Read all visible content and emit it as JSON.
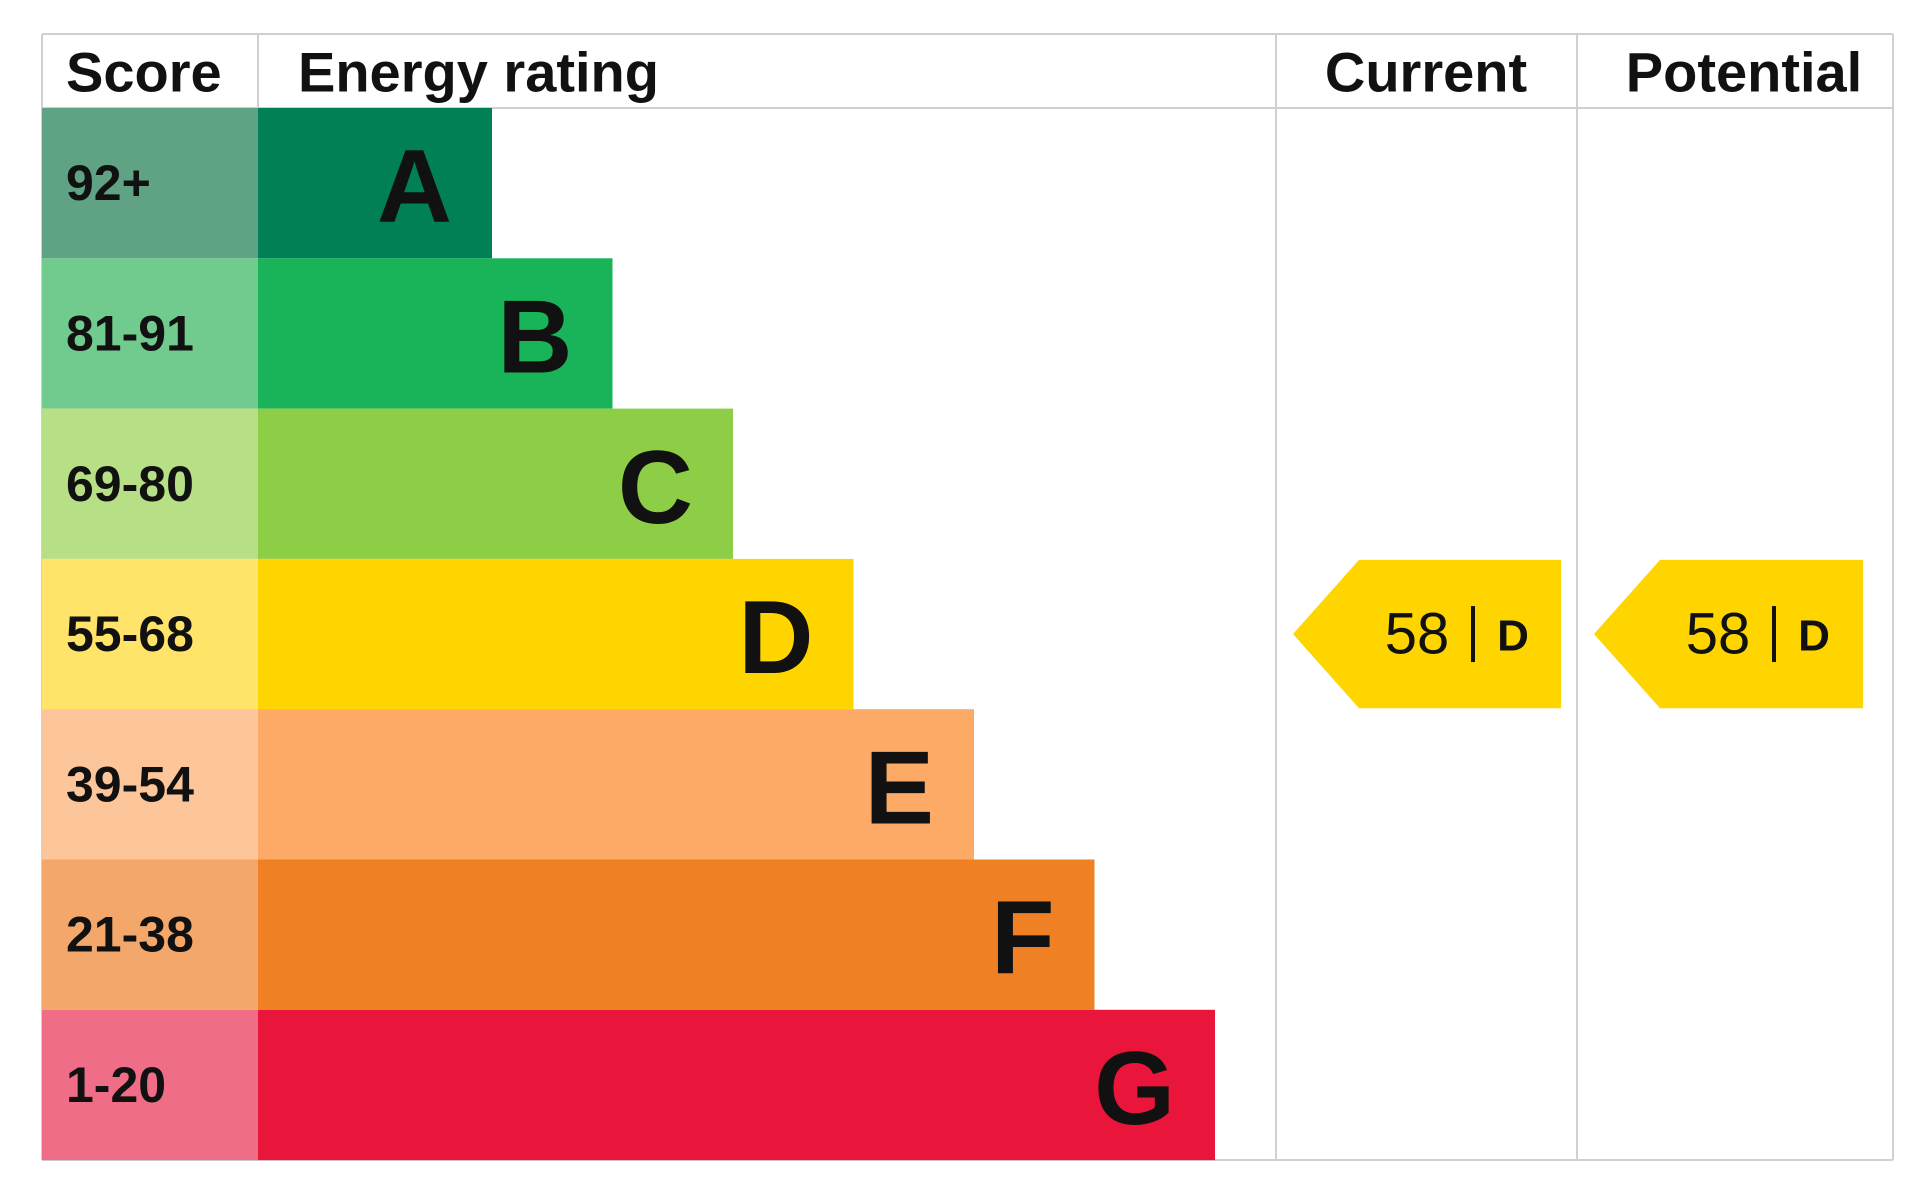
{
  "header": {
    "score": "Score",
    "rating": "Energy rating",
    "current": "Current",
    "potential": "Potential"
  },
  "bands": [
    {
      "score": "92+",
      "letter": "A",
      "color": "#008054",
      "score_color": "#5fa284"
    },
    {
      "score": "81-91",
      "letter": "B",
      "color": "#19b459",
      "score_color": "#72cb8e"
    },
    {
      "score": "69-80",
      "letter": "C",
      "color": "#8dce46",
      "score_color": "#b7df85"
    },
    {
      "score": "55-68",
      "letter": "D",
      "color": "#ffd500",
      "score_color": "#ffe469"
    },
    {
      "score": "39-54",
      "letter": "E",
      "color": "#fcaa65",
      "score_color": "#fdc59a"
    },
    {
      "score": "21-38",
      "letter": "F",
      "color": "#ef8023",
      "score_color": "#f3a76a"
    },
    {
      "score": "1-20",
      "letter": "G",
      "color": "#e9153b",
      "score_color": "#ef6d86"
    }
  ],
  "current": {
    "score": 58,
    "band": "D"
  },
  "potential": {
    "score": 58,
    "band": "D"
  }
}
